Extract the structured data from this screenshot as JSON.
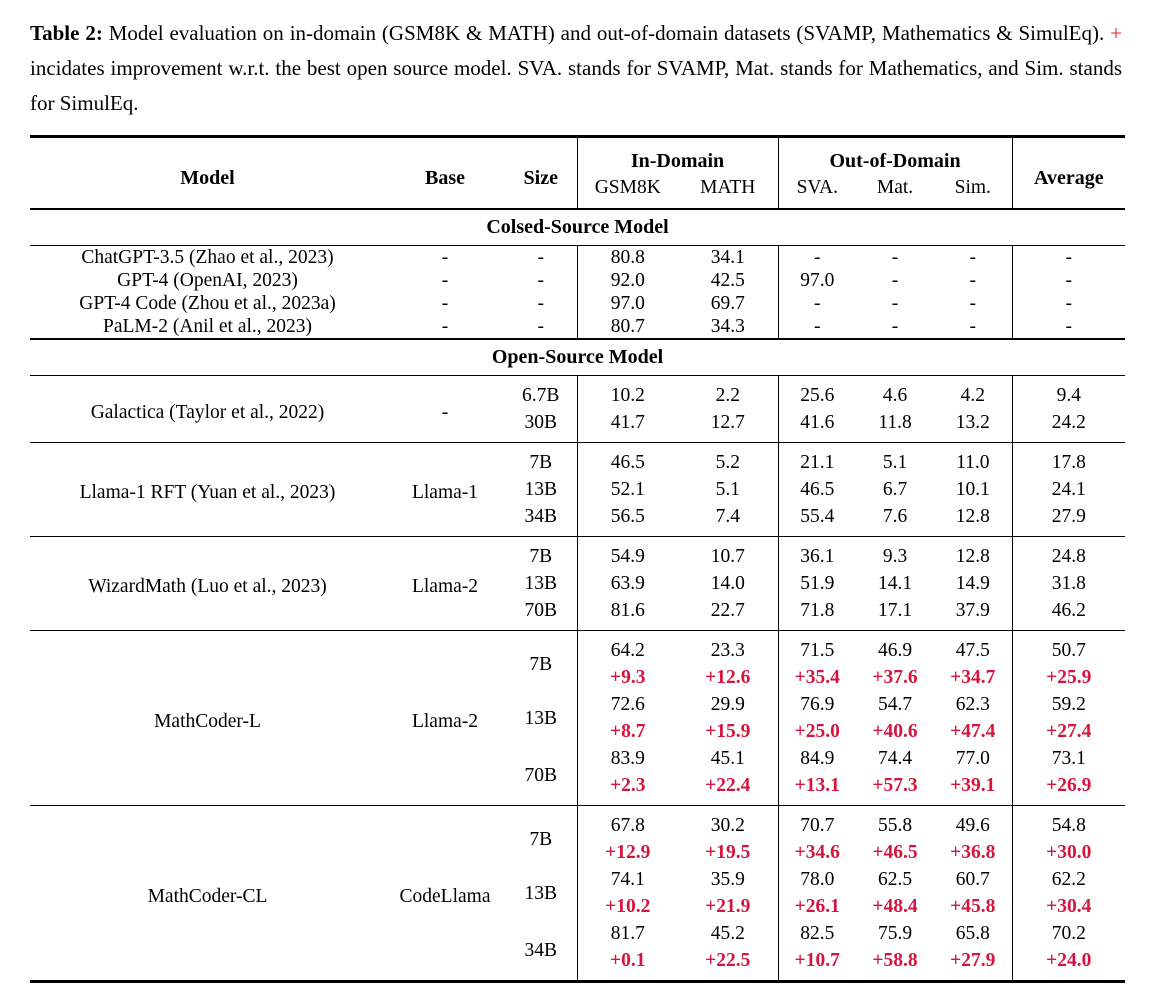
{
  "colors": {
    "background": "#ffffff",
    "text": "#000000",
    "caption_plus_red": "#e41e2a",
    "delta_red": "#d4163e"
  },
  "caption": {
    "label": "Table 2:",
    "text_before_plus": "Model evaluation on in-domain (GSM8K & MATH) and out-of-domain datasets (SVAMP, Mathematics & SimulEq).",
    "plus": "+",
    "text_after_plus": "incidates improvement w.r.t. the best open source model. SVA. stands for SVAMP, Mat. stands for Mathematics, and Sim. stands for SimulEq."
  },
  "table": {
    "header": {
      "model": "Model",
      "base": "Base",
      "size": "Size",
      "in_domain": "In-Domain",
      "out_of_domain": "Out-of-Domain",
      "average": "Average",
      "sub": [
        "GSM8K",
        "MATH",
        "SVA.",
        "Mat.",
        "Sim."
      ]
    },
    "sections": [
      {
        "title": "Colsed-Source Model",
        "groups": [
          {
            "model": "ChatGPT-3.5 (Zhao et al., 2023)",
            "base": "-",
            "rows": [
              {
                "size": "-",
                "values": [
                  "80.8",
                  "34.1",
                  "-",
                  "-",
                  "-",
                  "-"
                ]
              }
            ]
          },
          {
            "model": "GPT-4 (OpenAI, 2023)",
            "base": "-",
            "rows": [
              {
                "size": "-",
                "values": [
                  "92.0",
                  "42.5",
                  "97.0",
                  "-",
                  "-",
                  "-"
                ]
              }
            ]
          },
          {
            "model": "GPT-4 Code (Zhou et al., 2023a)",
            "base": "-",
            "rows": [
              {
                "size": "-",
                "values": [
                  "97.0",
                  "69.7",
                  "-",
                  "-",
                  "-",
                  "-"
                ]
              }
            ]
          },
          {
            "model": "PaLM-2 (Anil et al., 2023)",
            "base": "-",
            "rows": [
              {
                "size": "-",
                "values": [
                  "80.7",
                  "34.3",
                  "-",
                  "-",
                  "-",
                  "-"
                ]
              }
            ]
          }
        ]
      },
      {
        "title": "Open-Source Model",
        "groups": [
          {
            "model": "Galactica (Taylor et al., 2022)",
            "base": "-",
            "rows": [
              {
                "size": "6.7B",
                "values": [
                  "10.2",
                  "2.2",
                  "25.6",
                  "4.6",
                  "4.2",
                  "9.4"
                ]
              },
              {
                "size": "30B",
                "values": [
                  "41.7",
                  "12.7",
                  "41.6",
                  "11.8",
                  "13.2",
                  "24.2"
                ]
              }
            ]
          },
          {
            "model": "Llama-1 RFT (Yuan et al., 2023)",
            "base": "Llama-1",
            "rows": [
              {
                "size": "7B",
                "values": [
                  "46.5",
                  "5.2",
                  "21.1",
                  "5.1",
                  "11.0",
                  "17.8"
                ]
              },
              {
                "size": "13B",
                "values": [
                  "52.1",
                  "5.1",
                  "46.5",
                  "6.7",
                  "10.1",
                  "24.1"
                ]
              },
              {
                "size": "34B",
                "values": [
                  "56.5",
                  "7.4",
                  "55.4",
                  "7.6",
                  "12.8",
                  "27.9"
                ]
              }
            ]
          },
          {
            "model": "WizardMath (Luo et al., 2023)",
            "base": "Llama-2",
            "rows": [
              {
                "size": "7B",
                "values": [
                  "54.9",
                  "10.7",
                  "36.1",
                  "9.3",
                  "12.8",
                  "24.8"
                ]
              },
              {
                "size": "13B",
                "values": [
                  "63.9",
                  "14.0",
                  "51.9",
                  "14.1",
                  "14.9",
                  "31.8"
                ]
              },
              {
                "size": "70B",
                "values": [
                  "81.6",
                  "22.7",
                  "71.8",
                  "17.1",
                  "37.9",
                  "46.2"
                ]
              }
            ]
          },
          {
            "model": "MathCoder-L",
            "base": "Llama-2",
            "rows": [
              {
                "size": "7B",
                "values": [
                  "64.2",
                  "23.3",
                  "71.5",
                  "46.9",
                  "47.5",
                  "50.7"
                ],
                "deltas": [
                  "+9.3",
                  "+12.6",
                  "+35.4",
                  "+37.6",
                  "+34.7",
                  "+25.9"
                ]
              },
              {
                "size": "13B",
                "values": [
                  "72.6",
                  "29.9",
                  "76.9",
                  "54.7",
                  "62.3",
                  "59.2"
                ],
                "deltas": [
                  "+8.7",
                  "+15.9",
                  "+25.0",
                  "+40.6",
                  "+47.4",
                  "+27.4"
                ]
              },
              {
                "size": "70B",
                "values": [
                  "83.9",
                  "45.1",
                  "84.9",
                  "74.4",
                  "77.0",
                  "73.1"
                ],
                "deltas": [
                  "+2.3",
                  "+22.4",
                  "+13.1",
                  "+57.3",
                  "+39.1",
                  "+26.9"
                ]
              }
            ]
          },
          {
            "model": "MathCoder-CL",
            "base": "CodeLlama",
            "rows": [
              {
                "size": "7B",
                "values": [
                  "67.8",
                  "30.2",
                  "70.7",
                  "55.8",
                  "49.6",
                  "54.8"
                ],
                "deltas": [
                  "+12.9",
                  "+19.5",
                  "+34.6",
                  "+46.5",
                  "+36.8",
                  "+30.0"
                ]
              },
              {
                "size": "13B",
                "values": [
                  "74.1",
                  "35.9",
                  "78.0",
                  "62.5",
                  "60.7",
                  "62.2"
                ],
                "deltas": [
                  "+10.2",
                  "+21.9",
                  "+26.1",
                  "+48.4",
                  "+45.8",
                  "+30.4"
                ]
              },
              {
                "size": "34B",
                "values": [
                  "81.7",
                  "45.2",
                  "82.5",
                  "75.9",
                  "65.8",
                  "70.2"
                ],
                "deltas": [
                  "+0.1",
                  "+22.5",
                  "+10.7",
                  "+58.8",
                  "+27.9",
                  "+24.0"
                ]
              }
            ]
          }
        ]
      }
    ]
  }
}
